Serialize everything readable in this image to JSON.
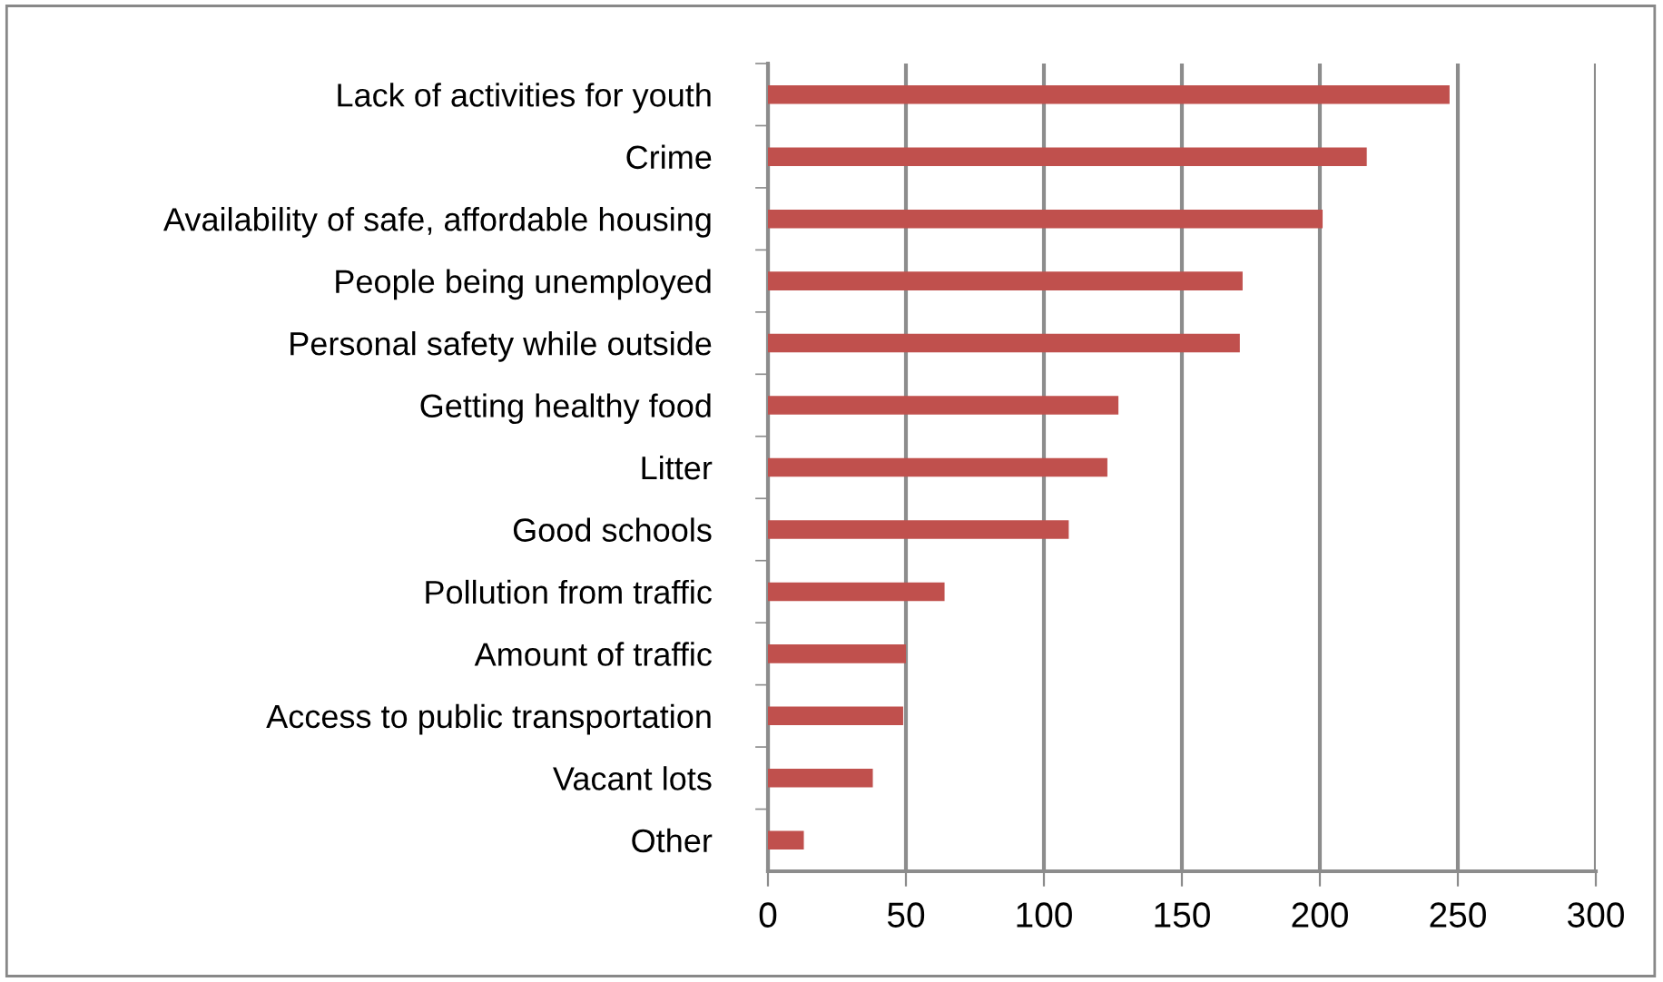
{
  "chart_data": {
    "type": "bar",
    "orientation": "horizontal",
    "categories": [
      "Lack of activities for youth",
      "Crime",
      "Availability of safe, affordable housing",
      "People being unemployed",
      "Personal safety while outside",
      "Getting healthy food",
      "Litter",
      "Good schools",
      "Pollution from traffic",
      "Amount of traffic",
      "Access to public transportation",
      "Vacant lots",
      "Other"
    ],
    "values": [
      247,
      217,
      201,
      172,
      171,
      127,
      123,
      109,
      64,
      50,
      49,
      38,
      13
    ],
    "color": "#c0504d",
    "xlim": [
      0,
      300
    ],
    "xticks": [
      0,
      50,
      100,
      150,
      200,
      250,
      300
    ],
    "grid": "x"
  }
}
